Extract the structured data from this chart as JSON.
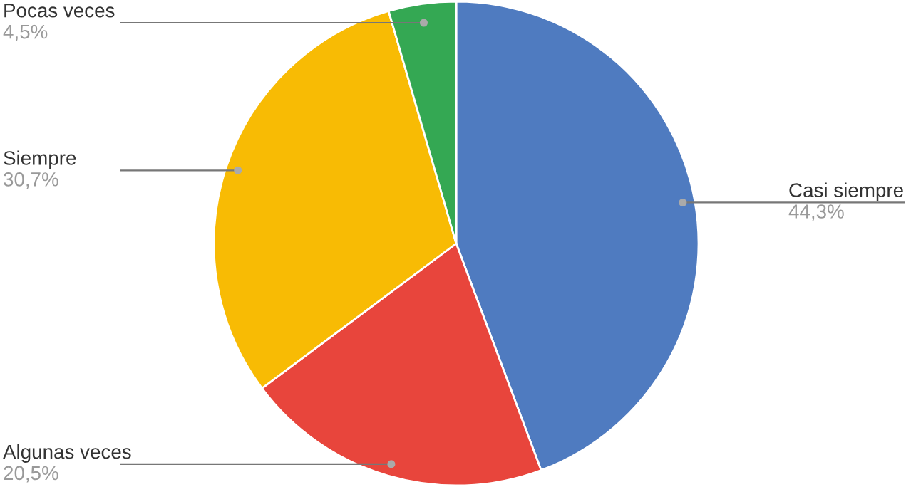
{
  "chart_data": {
    "type": "pie",
    "categories": [
      "Casi siempre",
      "Algunas veces",
      "Siempre",
      "Pocas veces"
    ],
    "values": [
      44.3,
      20.5,
      30.7,
      4.5
    ],
    "colors": [
      "#4f7bc0",
      "#e8453c",
      "#f8bb04",
      "#34a853"
    ],
    "value_labels": [
      "44,3%",
      "20,5%",
      "30,7%",
      "4,5%"
    ]
  }
}
